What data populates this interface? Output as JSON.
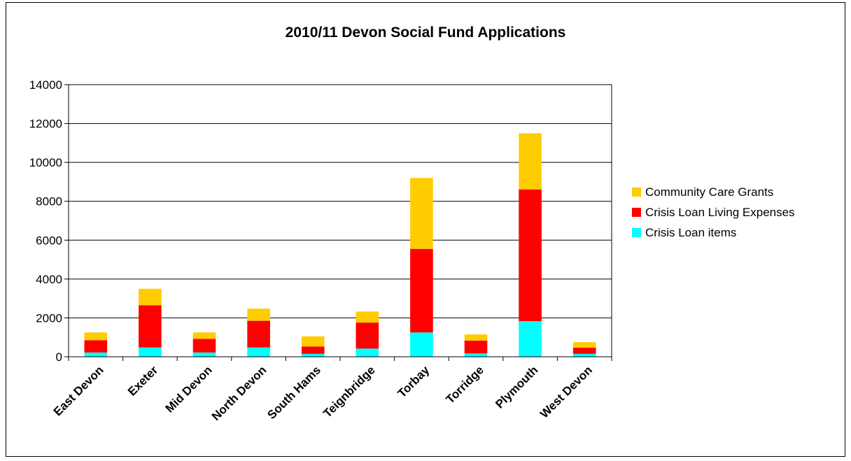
{
  "chart_data": {
    "type": "bar",
    "stacked": true,
    "title": "2010/11 Devon Social Fund Applications",
    "xlabel": "",
    "ylabel": "",
    "categories": [
      "East Devon",
      "Exeter",
      "Mid Devon",
      "North Devon",
      "South Hams",
      "Teignbridge",
      "Torbay",
      "Torridge",
      "Plymouth",
      "West Devon"
    ],
    "series": [
      {
        "name": "Crisis Loan items",
        "color": "#00FFFF",
        "values": [
          220,
          480,
          220,
          480,
          150,
          420,
          1250,
          170,
          1830,
          150
        ]
      },
      {
        "name": "Crisis Loan Living Expenses",
        "color": "#FF0000",
        "values": [
          630,
          2170,
          700,
          1370,
          380,
          1340,
          4300,
          660,
          6780,
          320
        ]
      },
      {
        "name": "Community Care Grants",
        "color": "#FFCC00",
        "values": [
          400,
          850,
          330,
          630,
          520,
          570,
          3650,
          320,
          2890,
          280
        ]
      }
    ],
    "ylim": [
      0,
      14000
    ],
    "yticks": [
      "0",
      "2000",
      "4000",
      "6000",
      "8000",
      "10000",
      "12000",
      "14000"
    ],
    "grid": true,
    "legend_position": "right"
  }
}
